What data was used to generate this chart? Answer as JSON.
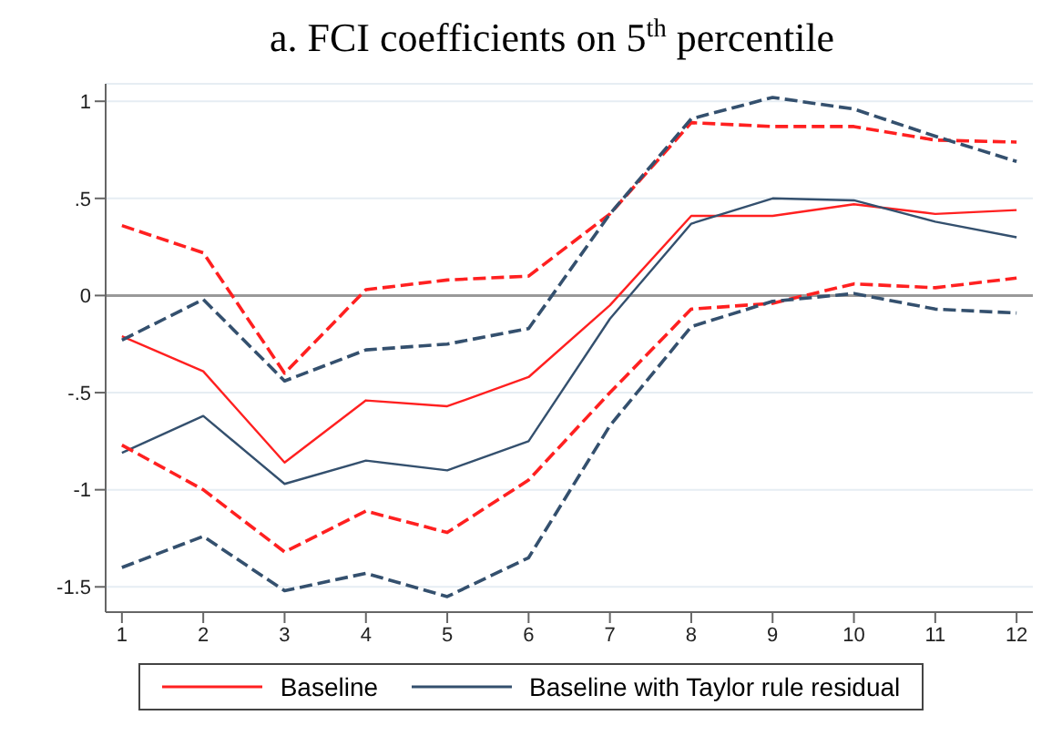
{
  "chart_data": {
    "type": "line",
    "title": "a. FCI coefficients on 5$^{th}$ percentile",
    "x": [
      1,
      2,
      3,
      4,
      5,
      6,
      7,
      8,
      9,
      10,
      11,
      12
    ],
    "xlim": [
      0.8,
      12.2
    ],
    "xticks": [
      1,
      2,
      3,
      4,
      5,
      6,
      7,
      8,
      9,
      10,
      11,
      12
    ],
    "ylim": [
      -1.63,
      1.09
    ],
    "yticks": [
      {
        "value": -1.5,
        "label": "-1.5"
      },
      {
        "value": -1,
        "label": "-1"
      },
      {
        "value": -0.5,
        "label": "-.5"
      },
      {
        "value": 0,
        "label": "0"
      },
      {
        "value": 0.5,
        "label": ".5"
      },
      {
        "value": 1,
        "label": "1"
      }
    ],
    "grid": "y",
    "legend": "bottom",
    "marker": "none",
    "ref_lines": [
      {
        "axis": "y",
        "value": 0,
        "color": "#999999"
      }
    ],
    "series": [
      {
        "name": "Baseline",
        "color": "#ff2020",
        "line_style": "solid",
        "values": [
          -0.21,
          -0.39,
          -0.86,
          -0.54,
          -0.57,
          -0.42,
          -0.05,
          0.41,
          0.41,
          0.47,
          0.42,
          0.44
        ]
      },
      {
        "name": "Baseline with Taylor rule residual",
        "color": "#34506e",
        "line_style": "solid",
        "values": [
          -0.81,
          -0.62,
          -0.97,
          -0.85,
          -0.9,
          -0.75,
          -0.12,
          0.37,
          0.5,
          0.49,
          0.38,
          0.3
        ]
      },
      {
        "color": "#ff2020",
        "line_style": "dashed",
        "values": [
          0.36,
          0.22,
          -0.4,
          0.03,
          0.08,
          0.1,
          0.42,
          0.89,
          0.87,
          0.87,
          0.8,
          0.79
        ]
      },
      {
        "color": "#ff2020",
        "line_style": "dashed",
        "values": [
          -0.77,
          -1.0,
          -1.32,
          -1.11,
          -1.22,
          -0.95,
          -0.5,
          -0.07,
          -0.04,
          0.06,
          0.04,
          0.09
        ]
      },
      {
        "color": "#34506e",
        "line_style": "dashed",
        "values": [
          -0.23,
          -0.02,
          -0.44,
          -0.28,
          -0.25,
          -0.17,
          0.42,
          0.91,
          1.02,
          0.96,
          0.82,
          0.69
        ]
      },
      {
        "color": "#34506e",
        "line_style": "dashed",
        "values": [
          -1.4,
          -1.24,
          -1.52,
          -1.43,
          -1.55,
          -1.35,
          -0.67,
          -0.16,
          -0.03,
          0.01,
          -0.07,
          -0.09
        ]
      }
    ]
  }
}
